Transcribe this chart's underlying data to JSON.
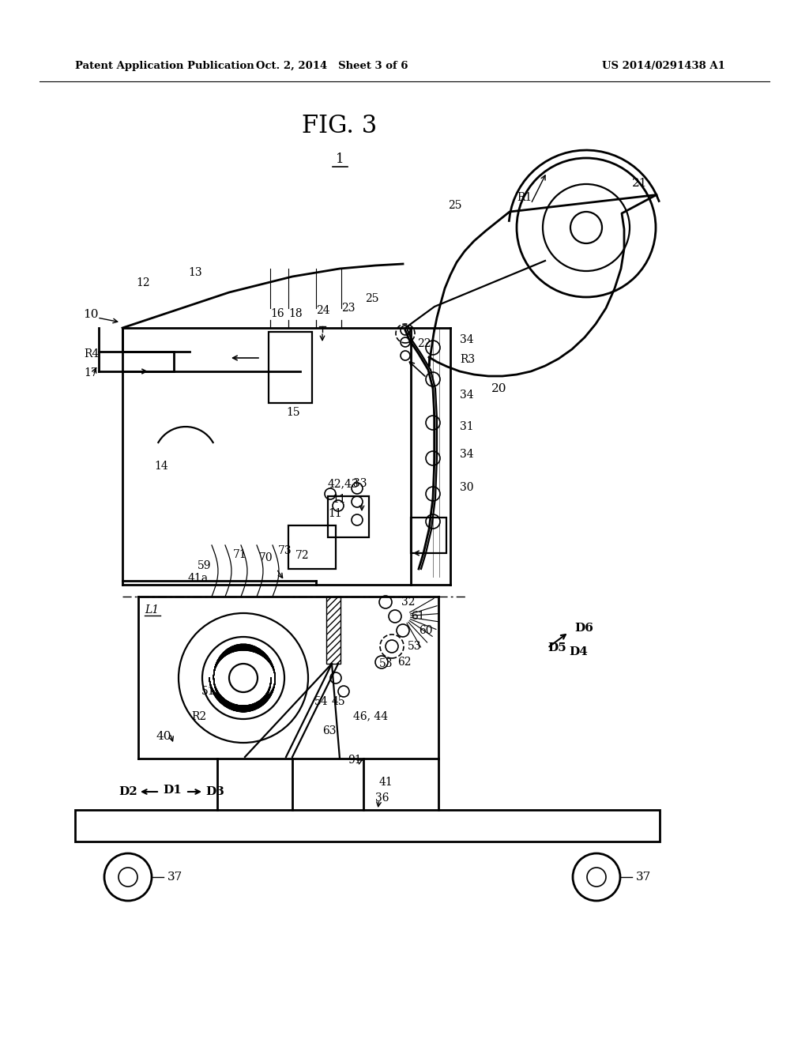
{
  "background_color": "#ffffff",
  "header_left": "Patent Application Publication",
  "header_center": "Oct. 2, 2014   Sheet 3 of 6",
  "header_right": "US 2014/0291438 A1",
  "fig_title": "FIG. 3",
  "fig_label": "1"
}
